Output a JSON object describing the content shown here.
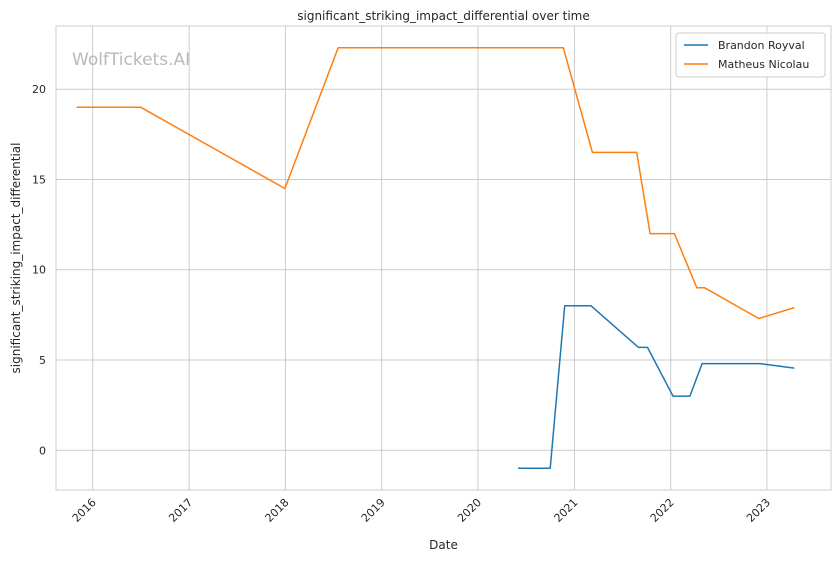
{
  "chart_data": {
    "type": "line",
    "title": "significant_striking_impact_differential over time",
    "xlabel": "Date",
    "ylabel": "significant_striking_impact_differential",
    "watermark": "WolfTickets.AI",
    "x_ticks": [
      "2016",
      "2017",
      "2018",
      "2019",
      "2020",
      "2021",
      "2022",
      "2023"
    ],
    "y_ticks": [
      0,
      5,
      10,
      15,
      20
    ],
    "xlim": [
      "2015-08-15",
      "2023-09-01"
    ],
    "ylim": [
      -2.2,
      23.5
    ],
    "grid": true,
    "legend_position": "top-right",
    "series": [
      {
        "name": "Brandon Royval",
        "color": "#1f77b4",
        "points": [
          {
            "x": "2020-06-01",
            "y": -1.0
          },
          {
            "x": "2020-10-01",
            "y": -1.0
          },
          {
            "x": "2020-11-25",
            "y": 8.0
          },
          {
            "x": "2021-03-05",
            "y": 8.0
          },
          {
            "x": "2021-09-01",
            "y": 5.7
          },
          {
            "x": "2021-10-05",
            "y": 5.7
          },
          {
            "x": "2022-01-10",
            "y": 3.0
          },
          {
            "x": "2022-03-15",
            "y": 3.0
          },
          {
            "x": "2022-04-30",
            "y": 4.8
          },
          {
            "x": "2022-12-05",
            "y": 4.8
          },
          {
            "x": "2023-04-15",
            "y": 4.55
          }
        ]
      },
      {
        "name": "Matheus Nicolau",
        "color": "#ff7f0e",
        "points": [
          {
            "x": "2015-11-01",
            "y": 19.0
          },
          {
            "x": "2016-07-01",
            "y": 19.0
          },
          {
            "x": "2017-12-30",
            "y": 14.5
          },
          {
            "x": "2018-07-20",
            "y": 22.3
          },
          {
            "x": "2020-11-20",
            "y": 22.3
          },
          {
            "x": "2021-03-10",
            "y": 16.5
          },
          {
            "x": "2021-08-25",
            "y": 16.5
          },
          {
            "x": "2021-10-15",
            "y": 12.0
          },
          {
            "x": "2022-01-15",
            "y": 12.0
          },
          {
            "x": "2022-04-10",
            "y": 9.0
          },
          {
            "x": "2022-05-10",
            "y": 9.0
          },
          {
            "x": "2022-12-01",
            "y": 7.3
          },
          {
            "x": "2023-04-15",
            "y": 7.9
          }
        ]
      }
    ]
  }
}
